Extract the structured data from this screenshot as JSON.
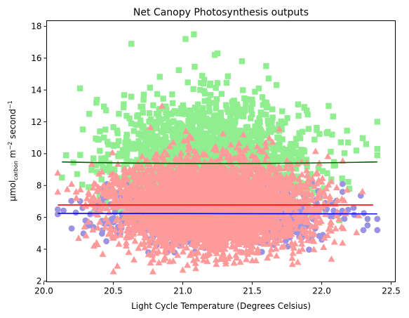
{
  "chart_data": {
    "type": "scatter",
    "title": "Net Canopy Photosynthesis outputs",
    "xlabel": "Light Cycle Temperature (Degrees Celsius)",
    "ylabel": {
      "prefix": "μmol",
      "subscript": "carbon",
      "middle": " m",
      "sup1": "−2",
      "suffix": " second",
      "sup2": "−1"
    },
    "xlim": [
      20.02,
      22.53
    ],
    "ylim": [
      1.95,
      18.35
    ],
    "x_ticks": [
      20.0,
      20.5,
      21.0,
      21.5,
      22.0,
      22.5
    ],
    "x_tick_labels": [
      "20.0",
      "20.5",
      "21.0",
      "21.5",
      "22.0",
      "22.5"
    ],
    "y_ticks": [
      2,
      4,
      6,
      8,
      10,
      12,
      14,
      16,
      18
    ],
    "y_tick_labels": [
      "2",
      "4",
      "6",
      "8",
      "10",
      "12",
      "14",
      "16",
      "18"
    ],
    "grid": false,
    "series": [
      {
        "marker": "square",
        "color": "#90ee90",
        "x_range": [
          20.08,
          22.4
        ],
        "x_center": 21.2,
        "x_spread": 0.34,
        "y_center": 9.5,
        "y_spread": 1.9,
        "y_min": 5.8,
        "y_max": 17.5,
        "points": [
          [
            20.13,
            8.5
          ],
          [
            20.16,
            9.9
          ],
          [
            20.26,
            14.1
          ],
          [
            20.63,
            16.9
          ],
          [
            21.02,
            17.2
          ],
          [
            21.08,
            17.5
          ],
          [
            21.23,
            16.2
          ],
          [
            21.25,
            16.3
          ],
          [
            21.6,
            15.5
          ],
          [
            22.4,
            12.0
          ],
          [
            22.4,
            10.3
          ],
          [
            22.4,
            9.9
          ],
          [
            22.32,
            10.6
          ],
          [
            22.25,
            10.2
          ],
          [
            22.05,
            13.0
          ]
        ],
        "count": 2100
      },
      {
        "marker": "circle",
        "color": "#9b93e2",
        "x_range": [
          20.08,
          22.4
        ],
        "x_center": 21.2,
        "x_spread": 0.36,
        "y_center": 6.2,
        "y_spread": 0.85,
        "y_min": 3.8,
        "y_max": 8.2,
        "points": [
          [
            20.1,
            6.5
          ],
          [
            20.1,
            6.2
          ],
          [
            20.2,
            5.3
          ],
          [
            20.23,
            6.3
          ],
          [
            20.3,
            5.8
          ],
          [
            22.4,
            5.9
          ],
          [
            22.4,
            5.2
          ],
          [
            22.33,
            5.5
          ],
          [
            22.33,
            5.9
          ],
          [
            22.3,
            5.2
          ],
          [
            22.15,
            8.1
          ],
          [
            22.15,
            7.6
          ],
          [
            22.23,
            6.6
          ],
          [
            22.0,
            4.6
          ],
          [
            20.45,
            4.5
          ]
        ],
        "count": 1300
      },
      {
        "marker": "triangle",
        "color": "#ff9a9a",
        "x_range": [
          20.08,
          22.4
        ],
        "x_center": 21.2,
        "x_spread": 0.33,
        "y_center": 6.8,
        "y_spread": 1.35,
        "y_min": 2.6,
        "y_max": 13.0,
        "points": [
          [
            20.1,
            8.8
          ],
          [
            20.1,
            7.6
          ],
          [
            20.2,
            8.1
          ],
          [
            20.3,
            6.8
          ],
          [
            20.25,
            4.7
          ],
          [
            21.0,
            2.7
          ],
          [
            20.85,
            13.0
          ],
          [
            22.1,
            5.3
          ],
          [
            22.15,
            4.4
          ],
          [
            21.5,
            3.3
          ]
        ],
        "count": 4500
      }
    ],
    "fit_lines": [
      {
        "color": "#006400",
        "x": [
          20.13,
          22.4
        ],
        "y": [
          9.48,
          9.48
        ],
        "curve_y_mid": 9.38
      },
      {
        "color": "#ff0000",
        "x": [
          20.1,
          22.37
        ],
        "y": [
          6.78,
          6.78
        ]
      },
      {
        "color": "#0000ff",
        "x": [
          20.1,
          22.4
        ],
        "y": [
          6.25,
          6.22
        ]
      }
    ]
  }
}
